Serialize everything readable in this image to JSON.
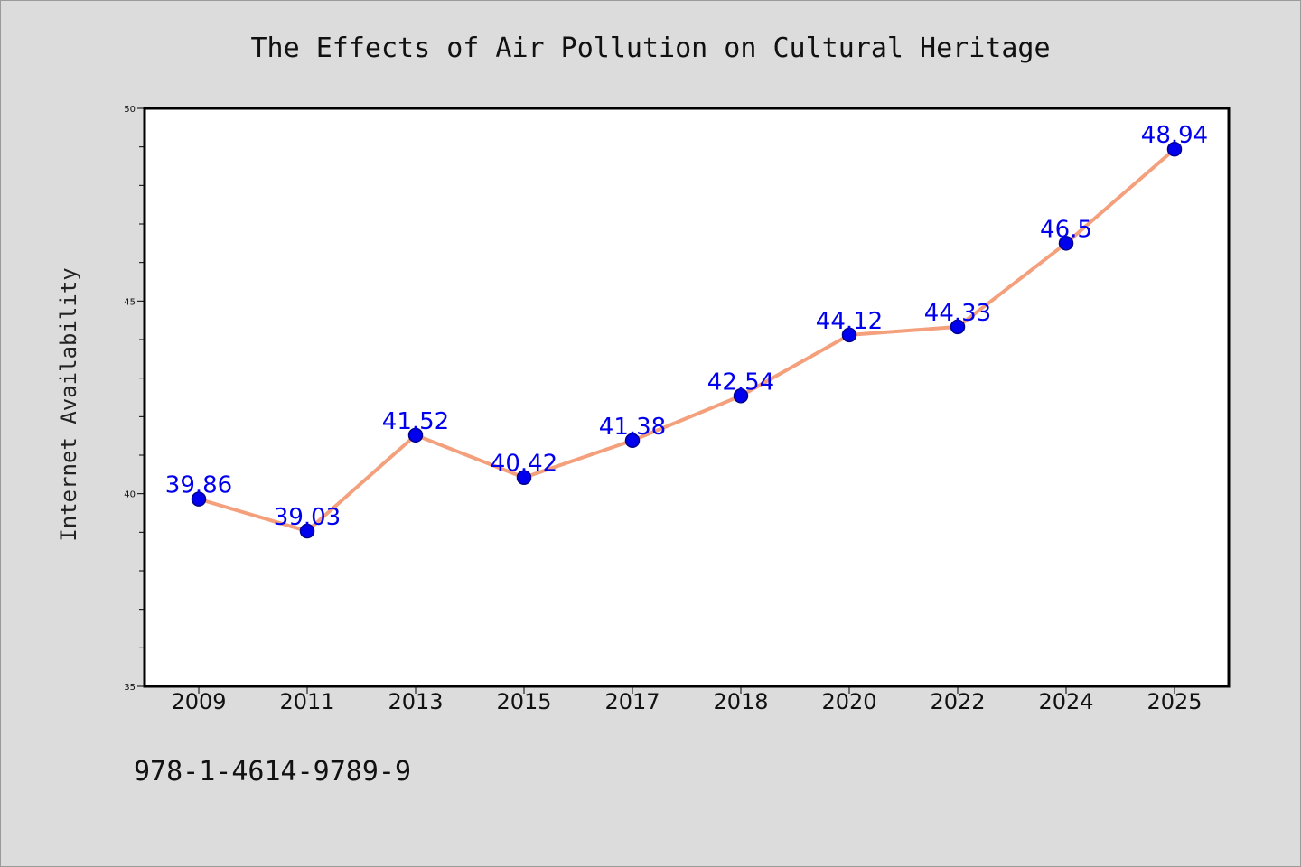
{
  "colors": {
    "background": "#dcdcdc",
    "plot_area": "#ffffff",
    "line": "#f4a07c",
    "marker_fill": "#0000ee",
    "marker_edge": "#00008b",
    "data_label": "#0000ee"
  },
  "footer": {
    "isbn": "978-1-4614-9789-9"
  },
  "chart_data": {
    "type": "line",
    "title": "The Effects of Air Pollution on Cultural Heritage",
    "xlabel": "",
    "ylabel": "Internet Availability",
    "categories": [
      "2009",
      "2011",
      "2013",
      "2015",
      "2017",
      "2018",
      "2020",
      "2022",
      "2024",
      "2025"
    ],
    "series": [
      {
        "values": [
          39.86,
          39.03,
          41.52,
          40.42,
          41.38,
          42.54,
          44.12,
          44.33,
          46.5,
          48.94
        ],
        "labels": [
          "39.86",
          "39.03",
          "41.52",
          "40.42",
          "41.38",
          "42.54",
          "44.12",
          "44.33",
          "46.5",
          "48.94"
        ]
      }
    ],
    "ylim": [
      35,
      50
    ],
    "yticks": [
      35,
      40,
      45,
      50
    ],
    "ytick_labels": [
      "35",
      "40",
      "45",
      "50"
    ],
    "yminor_step": 1,
    "grid": false,
    "legend": "none"
  }
}
